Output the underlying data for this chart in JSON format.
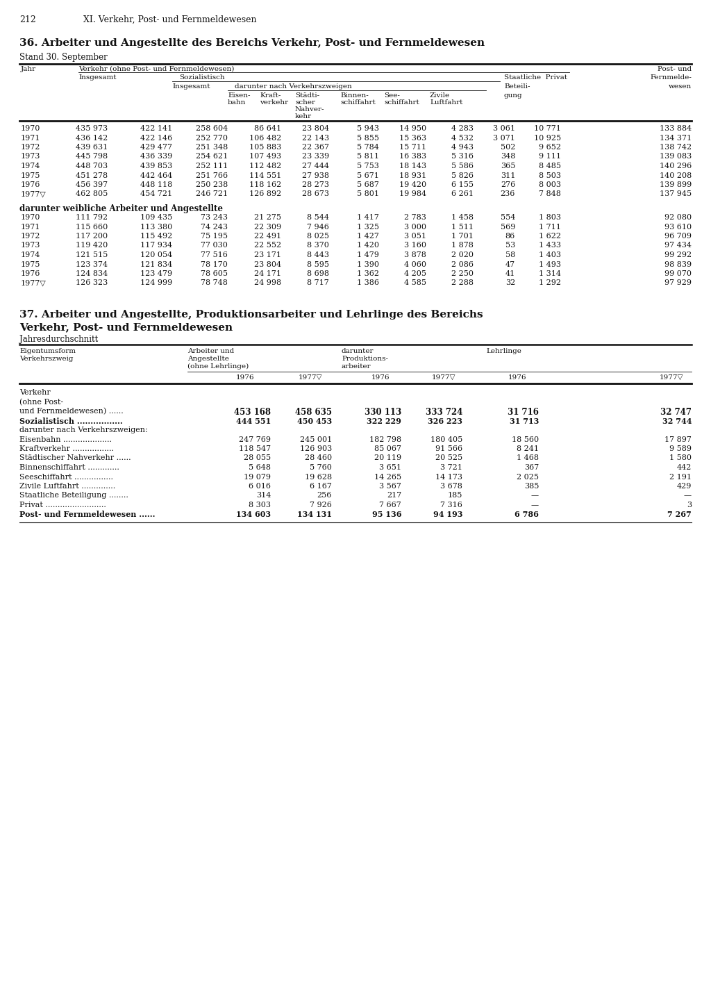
{
  "page_num": "212",
  "chapter": "XI. Verkehr, Post- und Fernmeldewesen",
  "table36_title": "36. Arbeiter und Angestellte des Bereichs Verkehr, Post- und Fernmeldewesen",
  "table36_subtitle": "Stand 30. September",
  "table36_data": [
    [
      "1970",
      "435 973",
      "422 141",
      "258 604",
      "86 641",
      "23 804",
      "5 943",
      "14 950",
      "4 283",
      "3 061",
      "10 771",
      "133 884"
    ],
    [
      "1971",
      "436 142",
      "422 146",
      "252 770",
      "106 482",
      "22 143",
      "5 855",
      "15 363",
      "4 532",
      "3 071",
      "10 925",
      "134 371"
    ],
    [
      "1972",
      "439 631",
      "429 477",
      "251 348",
      "105 883",
      "22 367",
      "5 784",
      "15 711",
      "4 943",
      "502",
      "9 652",
      "138 742"
    ],
    [
      "1973",
      "445 798",
      "436 339",
      "254 621",
      "107 493",
      "23 339",
      "5 811",
      "16 383",
      "5 316",
      "348",
      "9 111",
      "139 083"
    ],
    [
      "1974",
      "448 703",
      "439 853",
      "252 111",
      "112 482",
      "27 444",
      "5 753",
      "18 143",
      "5 586",
      "365",
      "8 485",
      "140 296"
    ],
    [
      "1975",
      "451 278",
      "442 464",
      "251 766",
      "114 551",
      "27 938",
      "5 671",
      "18 931",
      "5 826",
      "311",
      "8 503",
      "140 208"
    ],
    [
      "1976",
      "456 397",
      "448 118",
      "250 238",
      "118 162",
      "28 273",
      "5 687",
      "19 420",
      "6 155",
      "276",
      "8 003",
      "139 899"
    ],
    [
      "1977▽",
      "462 805",
      "454 721",
      "246 721",
      "126 892",
      "28 673",
      "5 801",
      "19 984",
      "6 261",
      "236",
      "7 848",
      "137 945"
    ]
  ],
  "table36_subtitle2": "darunter weibliche Arbeiter und Angestellte",
  "table36_data2": [
    [
      "1970",
      "111 792",
      "109 435",
      "73 243",
      "21 275",
      "8 544",
      "1 417",
      "2 783",
      "1 458",
      "554",
      "1 803",
      "92 080"
    ],
    [
      "1971",
      "115 660",
      "113 380",
      "74 243",
      "22 309",
      "7 946",
      "1 325",
      "3 000",
      "1 511",
      "569",
      "1 711",
      "93 610"
    ],
    [
      "1972",
      "117 200",
      "115 492",
      "75 195",
      "22 491",
      "8 025",
      "1 427",
      "3 051",
      "1 701",
      "86",
      "1 622",
      "96 709"
    ],
    [
      "1973",
      "119 420",
      "117 934",
      "77 030",
      "22 552",
      "8 370",
      "1 420",
      "3 160",
      "1 878",
      "53",
      "1 433",
      "97 434"
    ],
    [
      "1974",
      "121 515",
      "120 054",
      "77 516",
      "23 171",
      "8 443",
      "1 479",
      "3 878",
      "2 020",
      "58",
      "1 403",
      "99 292"
    ],
    [
      "1975",
      "123 374",
      "121 834",
      "78 170",
      "23 804",
      "8 595",
      "1 390",
      "4 060",
      "2 086",
      "47",
      "1 493",
      "98 839"
    ],
    [
      "1976",
      "124 834",
      "123 479",
      "78 605",
      "24 171",
      "8 698",
      "1 362",
      "4 205",
      "2 250",
      "41",
      "1 314",
      "99 070"
    ],
    [
      "1977▽",
      "126 323",
      "124 999",
      "78 748",
      "24 998",
      "8 717",
      "1 386",
      "4 585",
      "2 288",
      "32",
      "1 292",
      "97 929"
    ]
  ],
  "table37_title_line1": "37. Arbeiter und Angestellte, Produktionsarbeiter und Lehrlinge des Bereichs",
  "table37_title_line2": "Verkehr, Post- und Fernmeldewesen",
  "table37_subtitle": "Jahresdurchschnitt",
  "table37_data": [
    [
      "Verkehr",
      "",
      "",
      "",
      "",
      "",
      ""
    ],
    [
      "(ohne Post-",
      "",
      "",
      "",
      "",
      "",
      ""
    ],
    [
      "und Fernmeldewesen) ......",
      "453 168",
      "458 635",
      "330 113",
      "333 724",
      "31 716",
      "32 747"
    ],
    [
      "Sozialistisch .................",
      "444 551",
      "450 453",
      "322 229",
      "326 223",
      "31 713",
      "32 744"
    ],
    [
      "darunter nach Verkehrszweigen:",
      "",
      "",
      "",
      "",
      "",
      ""
    ],
    [
      "Eisenbahn ....................",
      "247 769",
      "245 001",
      "182 798",
      "180 405",
      "18 560",
      "17 897"
    ],
    [
      "Kraftverkehr .................",
      "118 547",
      "126 903",
      "85 067",
      "91 566",
      "8 241",
      "9 589"
    ],
    [
      "Städtischer Nahverkehr ......",
      "28 055",
      "28 460",
      "20 119",
      "20 525",
      "1 468",
      "1 580"
    ],
    [
      "Binnenschiffahrt .............",
      "5 648",
      "5 760",
      "3 651",
      "3 721",
      "367",
      "442"
    ],
    [
      "Seeschiffahrt ................",
      "19 079",
      "19 628",
      "14 265",
      "14 173",
      "2 025",
      "2 191"
    ],
    [
      "Zivile Luftfahrt ..............",
      "6 016",
      "6 167",
      "3 567",
      "3 678",
      "385",
      "429"
    ],
    [
      "Staatliche Beteiligung ........",
      "314",
      "256",
      "217",
      "185",
      "—",
      "—"
    ],
    [
      "Privat .........................",
      "8 303",
      "7 926",
      "7 667",
      "7 316",
      "—",
      "3"
    ],
    [
      "Post- und Fernmeldewesen ......",
      "134 603",
      "134 131",
      "95 136",
      "94 193",
      "6 786",
      "7 267"
    ]
  ],
  "bg_color": "#ffffff",
  "text_color": "#1a1a1a"
}
